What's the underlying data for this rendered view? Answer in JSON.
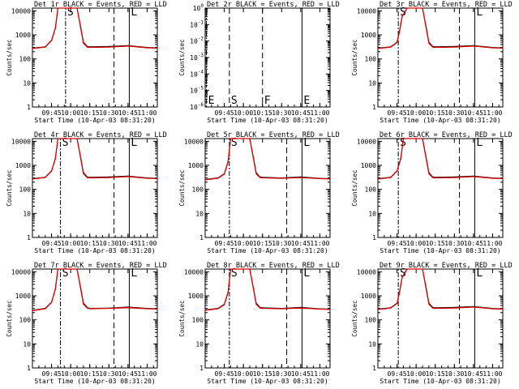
{
  "colors": {
    "events": "#000000",
    "lld": "#e00000",
    "background": "#ffffff"
  },
  "chart_data": [
    {
      "type": "line",
      "title": "Det 1r BLACK = Events, RED = LLD",
      "xlabel": "Start Time (10-Apr-03 08:31:20)",
      "ylabel": "Counts/sec",
      "x_ticks": [
        "09:45",
        "10:00",
        "10:15",
        "10:30",
        "10:45",
        "11:00"
      ],
      "y_ticks": [
        "1",
        "10",
        "100",
        "1000",
        "10000"
      ],
      "y_scale": "log",
      "ylim": [
        1,
        13000
      ],
      "xlim": [
        "09:30",
        "11:08"
      ],
      "markers": [
        {
          "label": "S",
          "time": "09:56"
        },
        {
          "label": "",
          "time": "10:34"
        },
        {
          "label": "L",
          "time": "10:46"
        }
      ],
      "series": [
        {
          "name": "Events",
          "color": "#000000",
          "x": [
            "09:30",
            "09:40",
            "09:45",
            "09:48",
            "09:50",
            "09:53",
            "10:00",
            "10:05",
            "10:08",
            "10:10",
            "10:13",
            "10:15",
            "10:30",
            "10:45",
            "11:00",
            "11:08"
          ],
          "values": [
            280,
            320,
            600,
            2000,
            13000,
            13000,
            13000,
            13000,
            2000,
            500,
            330,
            320,
            330,
            360,
            300,
            290
          ]
        },
        {
          "name": "LLD",
          "color": "#e00000",
          "x": [
            "09:30",
            "09:40",
            "09:45",
            "09:48",
            "09:50",
            "09:53",
            "10:00",
            "10:05",
            "10:08",
            "10:10",
            "10:13",
            "10:15",
            "10:30",
            "10:45",
            "11:00",
            "11:08"
          ],
          "values": [
            270,
            310,
            580,
            1900,
            13000,
            13000,
            13000,
            13000,
            1800,
            450,
            310,
            300,
            310,
            340,
            290,
            280
          ]
        }
      ]
    },
    {
      "type": "line",
      "title": "Det 2r BLACK = Events, RED = LLD",
      "xlabel": "Start Time (10-Apr-03 08:31:20)",
      "ylabel": "Counts/sec",
      "x_ticks": [
        "09:45",
        "10:00",
        "10:15",
        "10:30",
        "10:45",
        "11:00"
      ],
      "y_ticks": [
        "10^-6",
        "10^-5",
        "10^-4",
        "10^-3",
        "10^-2",
        "10^-1",
        "10^0"
      ],
      "y_scale": "log",
      "ylim": [
        1e-06,
        1
      ],
      "xlim": [
        "09:30",
        "11:08"
      ],
      "markers": [
        {
          "label": "E",
          "time": "09:31"
        },
        {
          "label": "S",
          "time": "09:49"
        },
        {
          "label": "F",
          "time": "10:15"
        },
        {
          "label": "E",
          "time": "10:46"
        }
      ],
      "series": []
    },
    {
      "type": "line",
      "title": "Det 3r BLACK = Events, RED = LLD",
      "xlabel": "Start Time (10-Apr-03 08:31:20)",
      "ylabel": "Counts/sec",
      "x_ticks": [
        "09:45",
        "10:00",
        "10:15",
        "10:30",
        "10:45",
        "11:00"
      ],
      "y_ticks": [
        "1",
        "10",
        "100",
        "1000",
        "10000"
      ],
      "y_scale": "log",
      "ylim": [
        1,
        13000
      ],
      "xlim": [
        "09:30",
        "11:08"
      ],
      "markers": [
        {
          "label": "S",
          "time": "09:46"
        },
        {
          "label": "",
          "time": "10:34"
        },
        {
          "label": "L",
          "time": "10:46"
        }
      ],
      "series": [
        {
          "name": "Events",
          "color": "#000000",
          "x": [
            "09:30",
            "09:40",
            "09:45",
            "09:47",
            "09:49",
            "09:53",
            "10:00",
            "10:05",
            "10:08",
            "10:10",
            "10:13",
            "10:15",
            "10:30",
            "10:45",
            "11:00",
            "11:08"
          ],
          "values": [
            280,
            320,
            500,
            1500,
            6000,
            13000,
            13000,
            13000,
            2000,
            500,
            330,
            320,
            330,
            360,
            300,
            290
          ]
        },
        {
          "name": "LLD",
          "color": "#e00000",
          "x": [
            "09:30",
            "09:40",
            "09:45",
            "09:47",
            "09:49",
            "09:53",
            "10:00",
            "10:05",
            "10:08",
            "10:10",
            "10:13",
            "10:15",
            "10:30",
            "10:45",
            "11:00",
            "11:08"
          ],
          "values": [
            270,
            310,
            480,
            1400,
            5800,
            13000,
            13000,
            13000,
            1800,
            450,
            310,
            300,
            310,
            340,
            290,
            280
          ]
        }
      ]
    },
    {
      "type": "line",
      "title": "Det 4r BLACK = Events, RED = LLD",
      "xlabel": "Start Time (10-Apr-03 08:31:20)",
      "ylabel": "Counts/sec",
      "x_ticks": [
        "09:45",
        "10:00",
        "10:15",
        "10:30",
        "10:45",
        "11:00"
      ],
      "y_ticks": [
        "1",
        "10",
        "100",
        "1000",
        "10000"
      ],
      "y_scale": "log",
      "ylim": [
        1,
        13000
      ],
      "xlim": [
        "09:30",
        "11:08"
      ],
      "markers": [
        {
          "label": "S",
          "time": "09:52"
        },
        {
          "label": "",
          "time": "10:34"
        },
        {
          "label": "L",
          "time": "10:46"
        }
      ],
      "series": [
        {
          "name": "Events",
          "color": "#000000",
          "x": [
            "09:30",
            "09:40",
            "09:45",
            "09:48",
            "09:50",
            "09:53",
            "10:00",
            "10:05",
            "10:08",
            "10:10",
            "10:13",
            "10:15",
            "10:30",
            "10:45",
            "11:00",
            "11:08"
          ],
          "values": [
            280,
            320,
            600,
            2000,
            13000,
            13000,
            13000,
            13000,
            2000,
            500,
            330,
            320,
            330,
            360,
            300,
            290
          ]
        },
        {
          "name": "LLD",
          "color": "#e00000",
          "x": [
            "09:30",
            "09:40",
            "09:45",
            "09:48",
            "09:50",
            "09:53",
            "10:00",
            "10:05",
            "10:08",
            "10:10",
            "10:13",
            "10:15",
            "10:30",
            "10:45",
            "11:00",
            "11:08"
          ],
          "values": [
            270,
            310,
            580,
            1900,
            13000,
            13000,
            13000,
            13000,
            1800,
            450,
            310,
            300,
            310,
            340,
            290,
            280
          ]
        }
      ]
    },
    {
      "type": "line",
      "title": "Det 5r BLACK = Events, RED = LLD",
      "xlabel": "Start Time (10-Apr-03 08:31:20)",
      "ylabel": "Counts/sec",
      "x_ticks": [
        "09:45",
        "10:00",
        "10:15",
        "10:30",
        "10:45",
        "11:00"
      ],
      "y_ticks": [
        "1",
        "10",
        "100",
        "1000",
        "10000"
      ],
      "y_scale": "log",
      "ylim": [
        1,
        13000
      ],
      "xlim": [
        "09:30",
        "11:08"
      ],
      "markers": [
        {
          "label": "S",
          "time": "09:49"
        },
        {
          "label": "",
          "time": "10:34"
        },
        {
          "label": "L",
          "time": "10:46"
        }
      ],
      "series": [
        {
          "name": "Events",
          "color": "#000000",
          "x": [
            "09:30",
            "09:40",
            "09:45",
            "09:48",
            "09:50",
            "09:53",
            "10:00",
            "10:05",
            "10:08",
            "10:10",
            "10:13",
            "10:15",
            "10:30",
            "10:45",
            "11:00",
            "11:08"
          ],
          "values": [
            260,
            300,
            450,
            1500,
            13000,
            13000,
            13000,
            13000,
            2000,
            500,
            330,
            320,
            300,
            330,
            290,
            280
          ]
        },
        {
          "name": "LLD",
          "color": "#e00000",
          "x": [
            "09:30",
            "09:40",
            "09:45",
            "09:48",
            "09:50",
            "09:53",
            "10:00",
            "10:05",
            "10:08",
            "10:10",
            "10:13",
            "10:15",
            "10:30",
            "10:45",
            "11:00",
            "11:08"
          ],
          "values": [
            250,
            290,
            430,
            1400,
            13000,
            13000,
            13000,
            13000,
            1800,
            450,
            310,
            300,
            290,
            310,
            280,
            270
          ]
        }
      ]
    },
    {
      "type": "line",
      "title": "Det 6r BLACK = Events, RED = LLD",
      "xlabel": "Start Time (10-Apr-03 08:31:20)",
      "ylabel": "Counts/sec",
      "x_ticks": [
        "09:45",
        "10:00",
        "10:15",
        "10:30",
        "10:45",
        "11:00"
      ],
      "y_ticks": [
        "1",
        "10",
        "100",
        "1000",
        "10000"
      ],
      "y_scale": "log",
      "ylim": [
        1,
        13000
      ],
      "xlim": [
        "09:30",
        "11:08"
      ],
      "markers": [
        {
          "label": "S",
          "time": "09:46"
        },
        {
          "label": "",
          "time": "10:34"
        },
        {
          "label": "L",
          "time": "10:46"
        }
      ],
      "series": [
        {
          "name": "Events",
          "color": "#000000",
          "x": [
            "09:30",
            "09:40",
            "09:45",
            "09:48",
            "09:50",
            "09:53",
            "10:00",
            "10:05",
            "10:08",
            "10:10",
            "10:13",
            "10:15",
            "10:30",
            "10:45",
            "11:00",
            "11:08"
          ],
          "values": [
            280,
            320,
            600,
            2000,
            13000,
            13000,
            13000,
            13000,
            2000,
            500,
            330,
            320,
            330,
            360,
            300,
            290
          ]
        },
        {
          "name": "LLD",
          "color": "#e00000",
          "x": [
            "09:30",
            "09:40",
            "09:45",
            "09:48",
            "09:50",
            "09:53",
            "10:00",
            "10:05",
            "10:08",
            "10:10",
            "10:13",
            "10:15",
            "10:30",
            "10:45",
            "11:00",
            "11:08"
          ],
          "values": [
            270,
            310,
            580,
            1900,
            13000,
            13000,
            13000,
            13000,
            1800,
            450,
            310,
            300,
            310,
            340,
            290,
            280
          ]
        }
      ]
    },
    {
      "type": "line",
      "title": "Det 7r BLACK = Events, RED = LLD",
      "xlabel": "Start Time (10-Apr-03 08:31:20)",
      "ylabel": "Counts/sec",
      "x_ticks": [
        "09:45",
        "10:00",
        "10:15",
        "10:30",
        "10:45",
        "11:00"
      ],
      "y_ticks": [
        "1",
        "10",
        "100",
        "1000",
        "10000"
      ],
      "y_scale": "log",
      "ylim": [
        1,
        13000
      ],
      "xlim": [
        "09:30",
        "11:08"
      ],
      "markers": [
        {
          "label": "S",
          "time": "09:52"
        },
        {
          "label": "",
          "time": "10:34"
        },
        {
          "label": "L",
          "time": "10:46"
        }
      ],
      "series": [
        {
          "name": "Events",
          "color": "#000000",
          "x": [
            "09:30",
            "09:40",
            "09:45",
            "09:48",
            "09:50",
            "09:53",
            "10:00",
            "10:05",
            "10:08",
            "10:10",
            "10:13",
            "10:15",
            "10:30",
            "10:45",
            "11:00",
            "11:08"
          ],
          "values": [
            250,
            300,
            550,
            2000,
            13000,
            13000,
            13000,
            13000,
            2000,
            500,
            330,
            300,
            310,
            340,
            300,
            290
          ]
        },
        {
          "name": "LLD",
          "color": "#e00000",
          "x": [
            "09:30",
            "09:40",
            "09:45",
            "09:48",
            "09:50",
            "09:53",
            "10:00",
            "10:05",
            "10:08",
            "10:10",
            "10:13",
            "10:15",
            "10:30",
            "10:45",
            "11:00",
            "11:08"
          ],
          "values": [
            240,
            290,
            530,
            1900,
            13000,
            13000,
            13000,
            13000,
            1800,
            450,
            310,
            290,
            300,
            320,
            290,
            280
          ]
        }
      ]
    },
    {
      "type": "line",
      "title": "Det 8r BLACK = Events, RED = LLD",
      "xlabel": "Start Time (10-Apr-03 08:31:20)",
      "ylabel": "Counts/sec",
      "x_ticks": [
        "09:45",
        "10:00",
        "10:15",
        "10:30",
        "10:45",
        "11:00"
      ],
      "y_ticks": [
        "1",
        "10",
        "100",
        "1000",
        "10000"
      ],
      "y_scale": "log",
      "ylim": [
        1,
        13000
      ],
      "xlim": [
        "09:30",
        "11:08"
      ],
      "markers": [
        {
          "label": "S",
          "time": "09:49"
        },
        {
          "label": "",
          "time": "10:34"
        },
        {
          "label": "L",
          "time": "10:46"
        }
      ],
      "series": [
        {
          "name": "Events",
          "color": "#000000",
          "x": [
            "09:30",
            "09:40",
            "09:45",
            "09:48",
            "09:50",
            "09:53",
            "10:00",
            "10:05",
            "10:08",
            "10:10",
            "10:13",
            "10:15",
            "10:30",
            "10:45",
            "11:00",
            "11:08"
          ],
          "values": [
            260,
            300,
            450,
            1500,
            13000,
            13000,
            13000,
            13000,
            2000,
            500,
            330,
            320,
            300,
            330,
            290,
            280
          ]
        },
        {
          "name": "LLD",
          "color": "#e00000",
          "x": [
            "09:30",
            "09:40",
            "09:45",
            "09:48",
            "09:50",
            "09:53",
            "10:00",
            "10:05",
            "10:08",
            "10:10",
            "10:13",
            "10:15",
            "10:30",
            "10:45",
            "11:00",
            "11:08"
          ],
          "values": [
            250,
            290,
            430,
            1400,
            13000,
            13000,
            13000,
            13000,
            1800,
            450,
            310,
            300,
            290,
            310,
            280,
            270
          ]
        }
      ]
    },
    {
      "type": "line",
      "title": "Det 9r BLACK = Events, RED = LLD",
      "xlabel": "Start Time (10-Apr-03 08:31:20)",
      "ylabel": "Counts/sec",
      "x_ticks": [
        "09:45",
        "10:00",
        "10:15",
        "10:30",
        "10:45",
        "11:00"
      ],
      "y_ticks": [
        "1",
        "10",
        "100",
        "1000",
        "10000"
      ],
      "y_scale": "log",
      "ylim": [
        1,
        13000
      ],
      "xlim": [
        "09:30",
        "11:08"
      ],
      "markers": [
        {
          "label": "S",
          "time": "09:46"
        },
        {
          "label": "",
          "time": "10:34"
        },
        {
          "label": "L",
          "time": "10:46"
        }
      ],
      "series": [
        {
          "name": "Events",
          "color": "#000000",
          "x": [
            "09:30",
            "09:40",
            "09:45",
            "09:47",
            "09:49",
            "09:53",
            "10:00",
            "10:05",
            "10:08",
            "10:10",
            "10:13",
            "10:15",
            "10:30",
            "10:45",
            "11:00",
            "11:08"
          ],
          "values": [
            280,
            320,
            500,
            1500,
            6000,
            13000,
            13000,
            13000,
            2000,
            500,
            330,
            320,
            330,
            360,
            300,
            290
          ]
        },
        {
          "name": "LLD",
          "color": "#e00000",
          "x": [
            "09:30",
            "09:40",
            "09:45",
            "09:47",
            "09:49",
            "09:53",
            "10:00",
            "10:05",
            "10:08",
            "10:10",
            "10:13",
            "10:15",
            "10:30",
            "10:45",
            "11:00",
            "11:08"
          ],
          "values": [
            270,
            310,
            480,
            1400,
            5800,
            13000,
            13000,
            13000,
            1800,
            450,
            310,
            300,
            310,
            340,
            290,
            280
          ]
        }
      ]
    }
  ]
}
